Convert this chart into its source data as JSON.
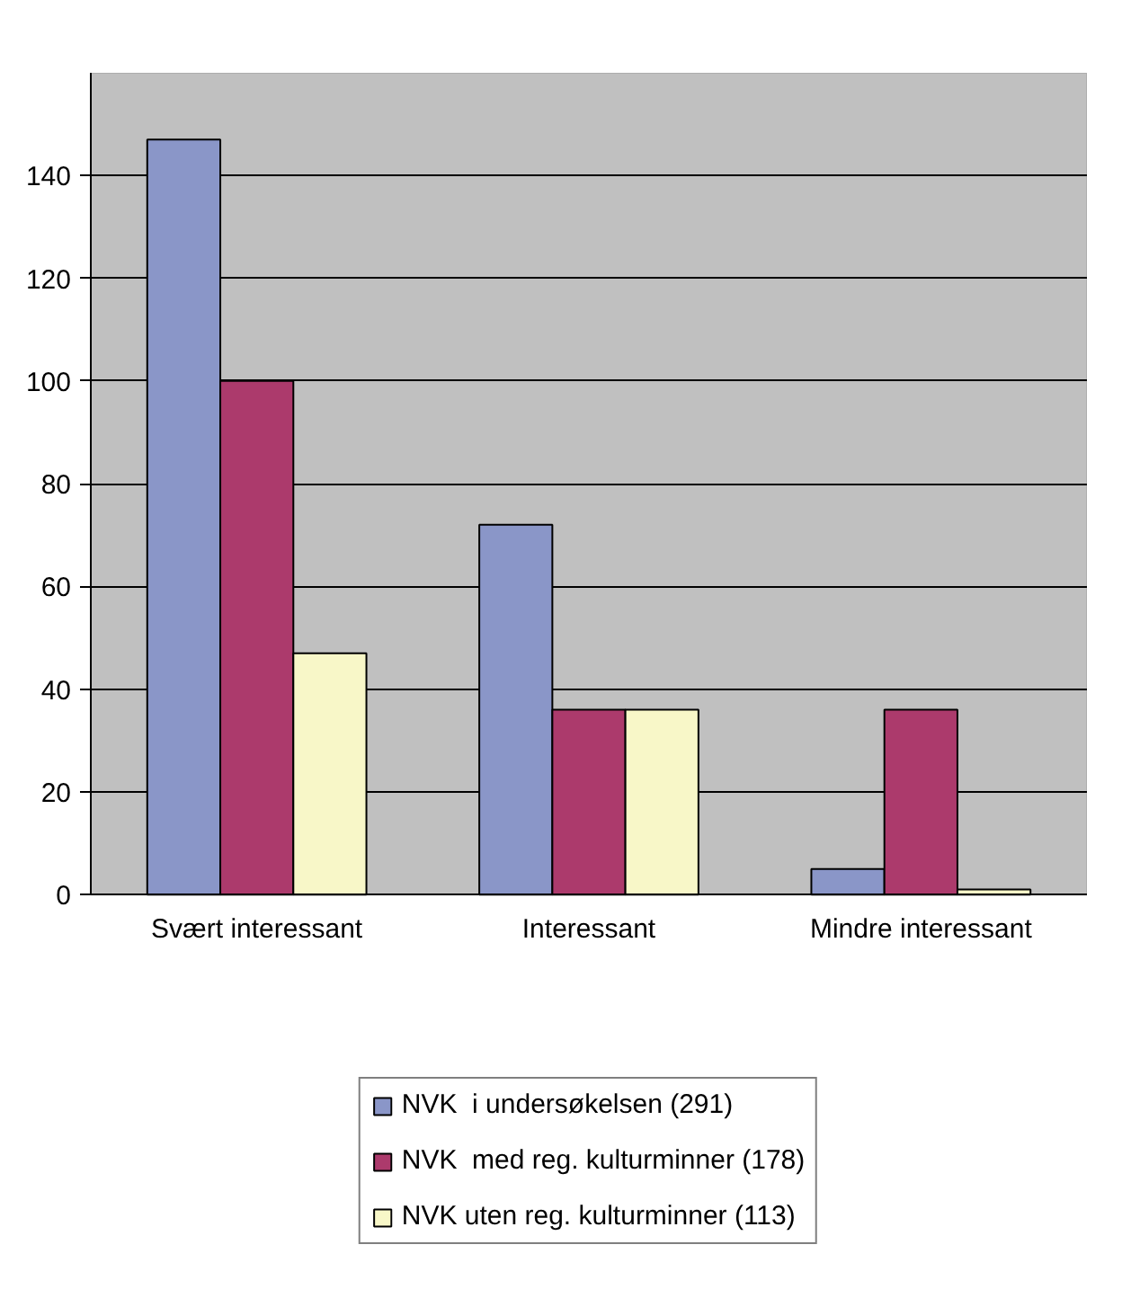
{
  "chart_data": {
    "type": "bar",
    "categories": [
      "Svært interessant",
      "Interessant",
      "Mindre interessant"
    ],
    "series": [
      {
        "name": "NVK  i undersøkelsen (291)",
        "color": "#8a96c8",
        "values": [
          147,
          72,
          5
        ]
      },
      {
        "name": "NVK  med reg. kulturminner (178)",
        "color": "#ac3a6c",
        "values": [
          100,
          36,
          36
        ]
      },
      {
        "name": "NVK uten reg. kulturminner (113)",
        "color": "#f8f7c8",
        "values": [
          47,
          36,
          1
        ]
      }
    ],
    "ylim": [
      0,
      160
    ],
    "yticks": [
      0,
      20,
      40,
      60,
      80,
      100,
      120,
      140
    ],
    "grid": "y",
    "legend": "bottom"
  }
}
